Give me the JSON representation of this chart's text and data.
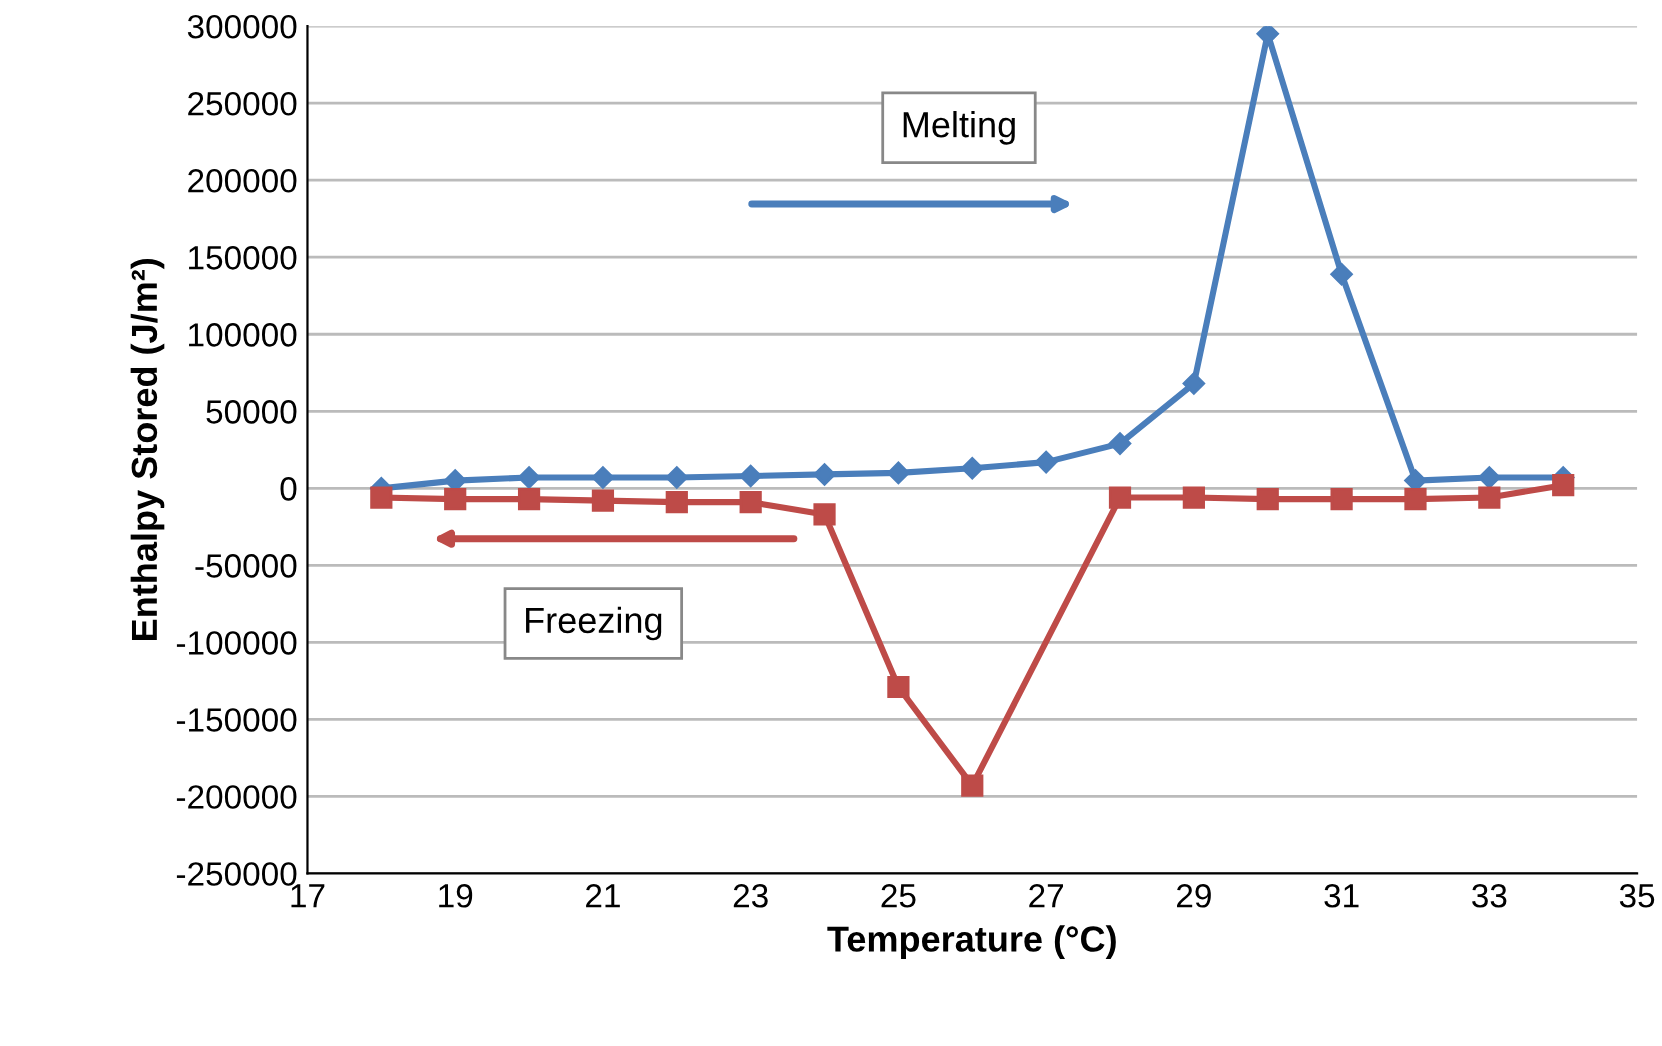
{
  "chart_data": {
    "type": "line",
    "xlabel": "Temperature (°C)",
    "ylabel": "Enthalpy Stored (J/m²)",
    "series": [
      {
        "color": "#4a7ebb",
        "marker": "diamond",
        "x": [
          18,
          19,
          20,
          21,
          22,
          23,
          24,
          25,
          26,
          27,
          28,
          29,
          30,
          31,
          32,
          33,
          34
        ],
        "values": [
          0,
          5000,
          7000,
          7000,
          7000,
          8000,
          9000,
          10000,
          13000,
          17000,
          29000,
          68000,
          295000,
          139000,
          5000,
          7000,
          7000
        ]
      },
      {
        "color": "#be4b48",
        "marker": "square",
        "x": [
          18,
          19,
          20,
          21,
          22,
          23,
          24,
          25,
          26,
          28,
          29,
          30,
          31,
          32,
          33,
          34
        ],
        "values": [
          -6000,
          -7000,
          -7000,
          -8000,
          -9000,
          -9000,
          -17000,
          -129000,
          -193000,
          -6000,
          -6000,
          -7000,
          -7000,
          -7000,
          -6000,
          2000
        ]
      }
    ],
    "xlim": [
      17,
      35
    ],
    "xticks": [
      17,
      19,
      21,
      23,
      25,
      27,
      29,
      31,
      33,
      35
    ],
    "ylim": [
      -250000,
      300000
    ],
    "yticks": [
      -250000,
      -200000,
      -150000,
      -100000,
      -50000,
      0,
      50000,
      100000,
      150000,
      200000,
      250000,
      300000
    ],
    "grid": "y",
    "legend": false,
    "annotations": [
      "Melting",
      "Freezing"
    ]
  }
}
